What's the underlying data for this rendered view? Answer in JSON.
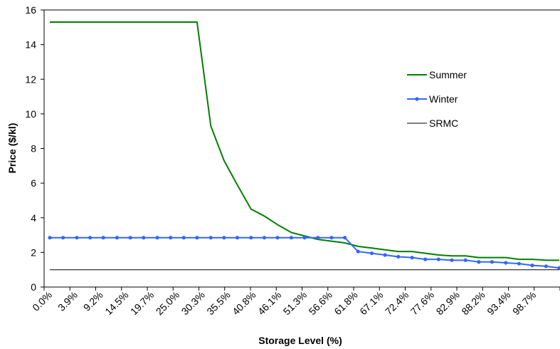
{
  "chart_data": {
    "type": "line",
    "xlabel": "Storage Level (%)",
    "ylabel": "Price ($/kl)",
    "ylim": [
      0,
      16
    ],
    "yticks": [
      0,
      2,
      4,
      6,
      8,
      10,
      12,
      14,
      16
    ],
    "xtick_labels": [
      "0.0%",
      "3.9%",
      "9.2%",
      "14.5%",
      "19.7%",
      "25.0%",
      "30.3%",
      "35.5%",
      "40.8%",
      "46.1%",
      "51.3%",
      "56.6%",
      "61.8%",
      "67.1%",
      "72.4%",
      "77.6%",
      "82.9%",
      "88.2%",
      "93.4%",
      "98.7%"
    ],
    "grid": false,
    "legend_position": "right",
    "series": [
      {
        "name": "Summer",
        "color": "#008000",
        "marker": "none",
        "x": [
          0,
          2.6,
          5.3,
          7.9,
          10.5,
          13.2,
          15.8,
          18.4,
          21.1,
          23.7,
          26.3,
          28.9,
          31.6,
          34.2,
          36.8,
          39.5,
          42.1,
          44.7,
          47.4,
          50.0,
          52.6,
          55.3,
          57.9,
          60.5,
          63.2,
          65.8,
          68.4,
          71.1,
          73.7,
          76.3,
          78.9,
          81.6,
          84.2,
          86.8,
          89.5,
          92.1,
          94.7,
          97.4,
          100
        ],
        "y": [
          15.3,
          15.3,
          15.3,
          15.3,
          15.3,
          15.3,
          15.3,
          15.3,
          15.3,
          15.3,
          15.3,
          15.3,
          9.3,
          7.3,
          5.9,
          4.5,
          4.1,
          3.6,
          3.15,
          2.95,
          2.75,
          2.65,
          2.55,
          2.35,
          2.25,
          2.15,
          2.05,
          2.05,
          1.95,
          1.85,
          1.8,
          1.8,
          1.7,
          1.7,
          1.7,
          1.6,
          1.6,
          1.55,
          1.55
        ]
      },
      {
        "name": "Winter",
        "color": "#3366ff",
        "marker": "circle",
        "x": [
          0,
          2.6,
          5.3,
          7.9,
          10.5,
          13.2,
          15.8,
          18.4,
          21.1,
          23.7,
          26.3,
          28.9,
          31.6,
          34.2,
          36.8,
          39.5,
          42.1,
          44.7,
          47.4,
          50.0,
          52.6,
          55.3,
          57.9,
          60.5,
          63.2,
          65.8,
          68.4,
          71.1,
          73.7,
          76.3,
          78.9,
          81.6,
          84.2,
          86.8,
          89.5,
          92.1,
          94.7,
          97.4,
          100
        ],
        "y": [
          2.85,
          2.85,
          2.85,
          2.85,
          2.85,
          2.85,
          2.85,
          2.85,
          2.85,
          2.85,
          2.85,
          2.85,
          2.85,
          2.85,
          2.85,
          2.85,
          2.85,
          2.85,
          2.85,
          2.85,
          2.85,
          2.85,
          2.85,
          2.05,
          1.95,
          1.85,
          1.75,
          1.7,
          1.6,
          1.6,
          1.55,
          1.55,
          1.45,
          1.45,
          1.4,
          1.35,
          1.25,
          1.2,
          1.1
        ]
      },
      {
        "name": "SRMC",
        "color": "#000000",
        "marker": "none",
        "x": [
          0,
          100
        ],
        "y": [
          1.0,
          1.0
        ]
      }
    ]
  }
}
